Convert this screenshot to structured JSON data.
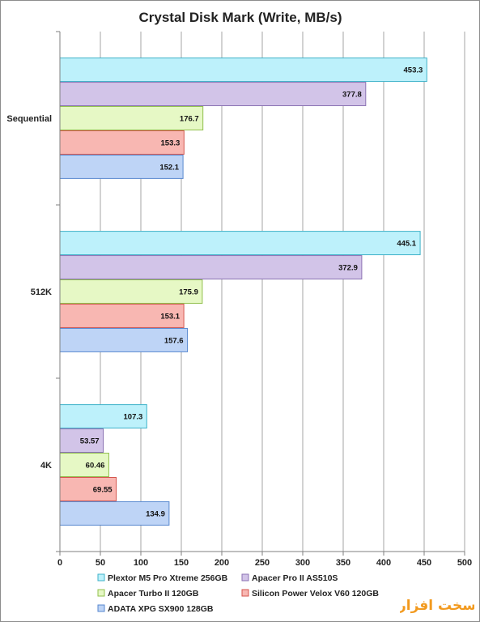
{
  "chart_data": {
    "type": "bar",
    "orientation": "horizontal",
    "title": "Crystal Disk Mark (Write, MB/s)",
    "xlabel": "",
    "ylabel": "",
    "xlim": [
      0,
      500
    ],
    "xticks": [
      0,
      50,
      100,
      150,
      200,
      250,
      300,
      350,
      400,
      450,
      500
    ],
    "grid": "vertical",
    "legend_position": "bottom",
    "categories": [
      "Sequential",
      "512K",
      "4K"
    ],
    "series": [
      {
        "name": "Plextor M5 Pro Xtreme 256GB",
        "color": "#bdf1fb",
        "edge": "#3fb2c9",
        "values": [
          453.3,
          445.1,
          107.3
        ],
        "labels": [
          "453.3",
          "445.1",
          "107.3"
        ]
      },
      {
        "name": "Apacer Pro II AS510S",
        "color": "#d2c4e8",
        "edge": "#8b72b3",
        "values": [
          377.8,
          372.9,
          53.57
        ],
        "labels": [
          "377.8",
          "372.9",
          "53.57"
        ]
      },
      {
        "name": "Apacer Turbo II 120GB",
        "color": "#e6f8c5",
        "edge": "#92c04e",
        "values": [
          176.7,
          175.9,
          60.46
        ],
        "labels": [
          "176.7",
          "175.9",
          "60.46"
        ]
      },
      {
        "name": "Silicon Power Velox V60 120GB",
        "color": "#f8b7b2",
        "edge": "#d4554d",
        "values": [
          153.3,
          153.1,
          69.55
        ],
        "labels": [
          "153.3",
          "153.1",
          "69.55"
        ]
      },
      {
        "name": "ADATA XPG SX900 128GB",
        "color": "#bed4f6",
        "edge": "#5787cf",
        "values": [
          152.1,
          157.6,
          134.9
        ],
        "labels": [
          "152.1",
          "157.6",
          "134.9"
        ]
      }
    ]
  },
  "watermark": {
    "text": "سخت افزار",
    "icon": "site-logo-watermark"
  }
}
